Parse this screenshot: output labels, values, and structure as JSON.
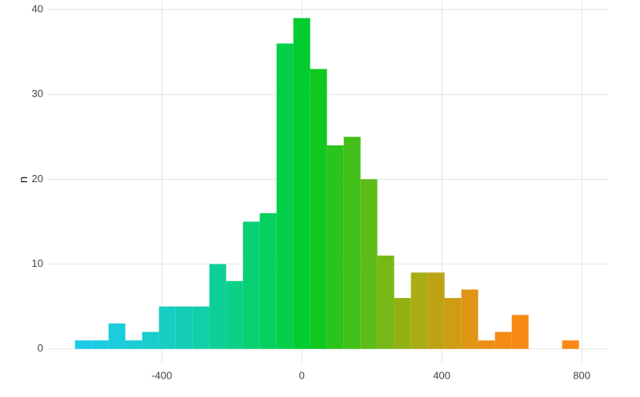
{
  "chart_data": {
    "type": "histogram",
    "y_label": "n",
    "bins": [
      -648,
      -600,
      -552,
      -504,
      -456,
      -408,
      -360,
      -312,
      -264,
      -216,
      -168,
      -120,
      -72,
      -24,
      24,
      72,
      120,
      168,
      216,
      264,
      312,
      360,
      408,
      456,
      504,
      552,
      600,
      648,
      696,
      744,
      792
    ],
    "values": [
      1,
      1,
      3,
      1,
      2,
      5,
      5,
      5,
      10,
      8,
      15,
      16,
      36,
      39,
      33,
      24,
      25,
      20,
      11,
      6,
      9,
      9,
      6,
      7,
      1,
      2,
      4,
      0,
      0,
      1
    ],
    "colors": [
      "#1ccbe8",
      "#1ccce2",
      "#1bccdc",
      "#1acdd4",
      "#18cdcc",
      "#16cec2",
      "#14ceb6",
      "#11cfa8",
      "#0ecf98",
      "#0bd086",
      "#08d073",
      "#05d05e",
      "#03d048",
      "#02cc30",
      "#10c820",
      "#2ac41c",
      "#44c01a",
      "#5ebc18",
      "#78b816",
      "#92b214",
      "#aaac14",
      "#bea414",
      "#d09c14",
      "#de9614",
      "#ea9014",
      "#f48c14",
      "#f88a14",
      "#fa8914",
      "#fb8814",
      "#fc8714"
    ],
    "xlim": [
      -725,
      875
    ],
    "ylim": [
      -2,
      41
    ],
    "xticks": [
      -400,
      0,
      400,
      800
    ],
    "yticks": [
      0,
      10,
      20,
      30,
      40
    ],
    "grid": true
  }
}
